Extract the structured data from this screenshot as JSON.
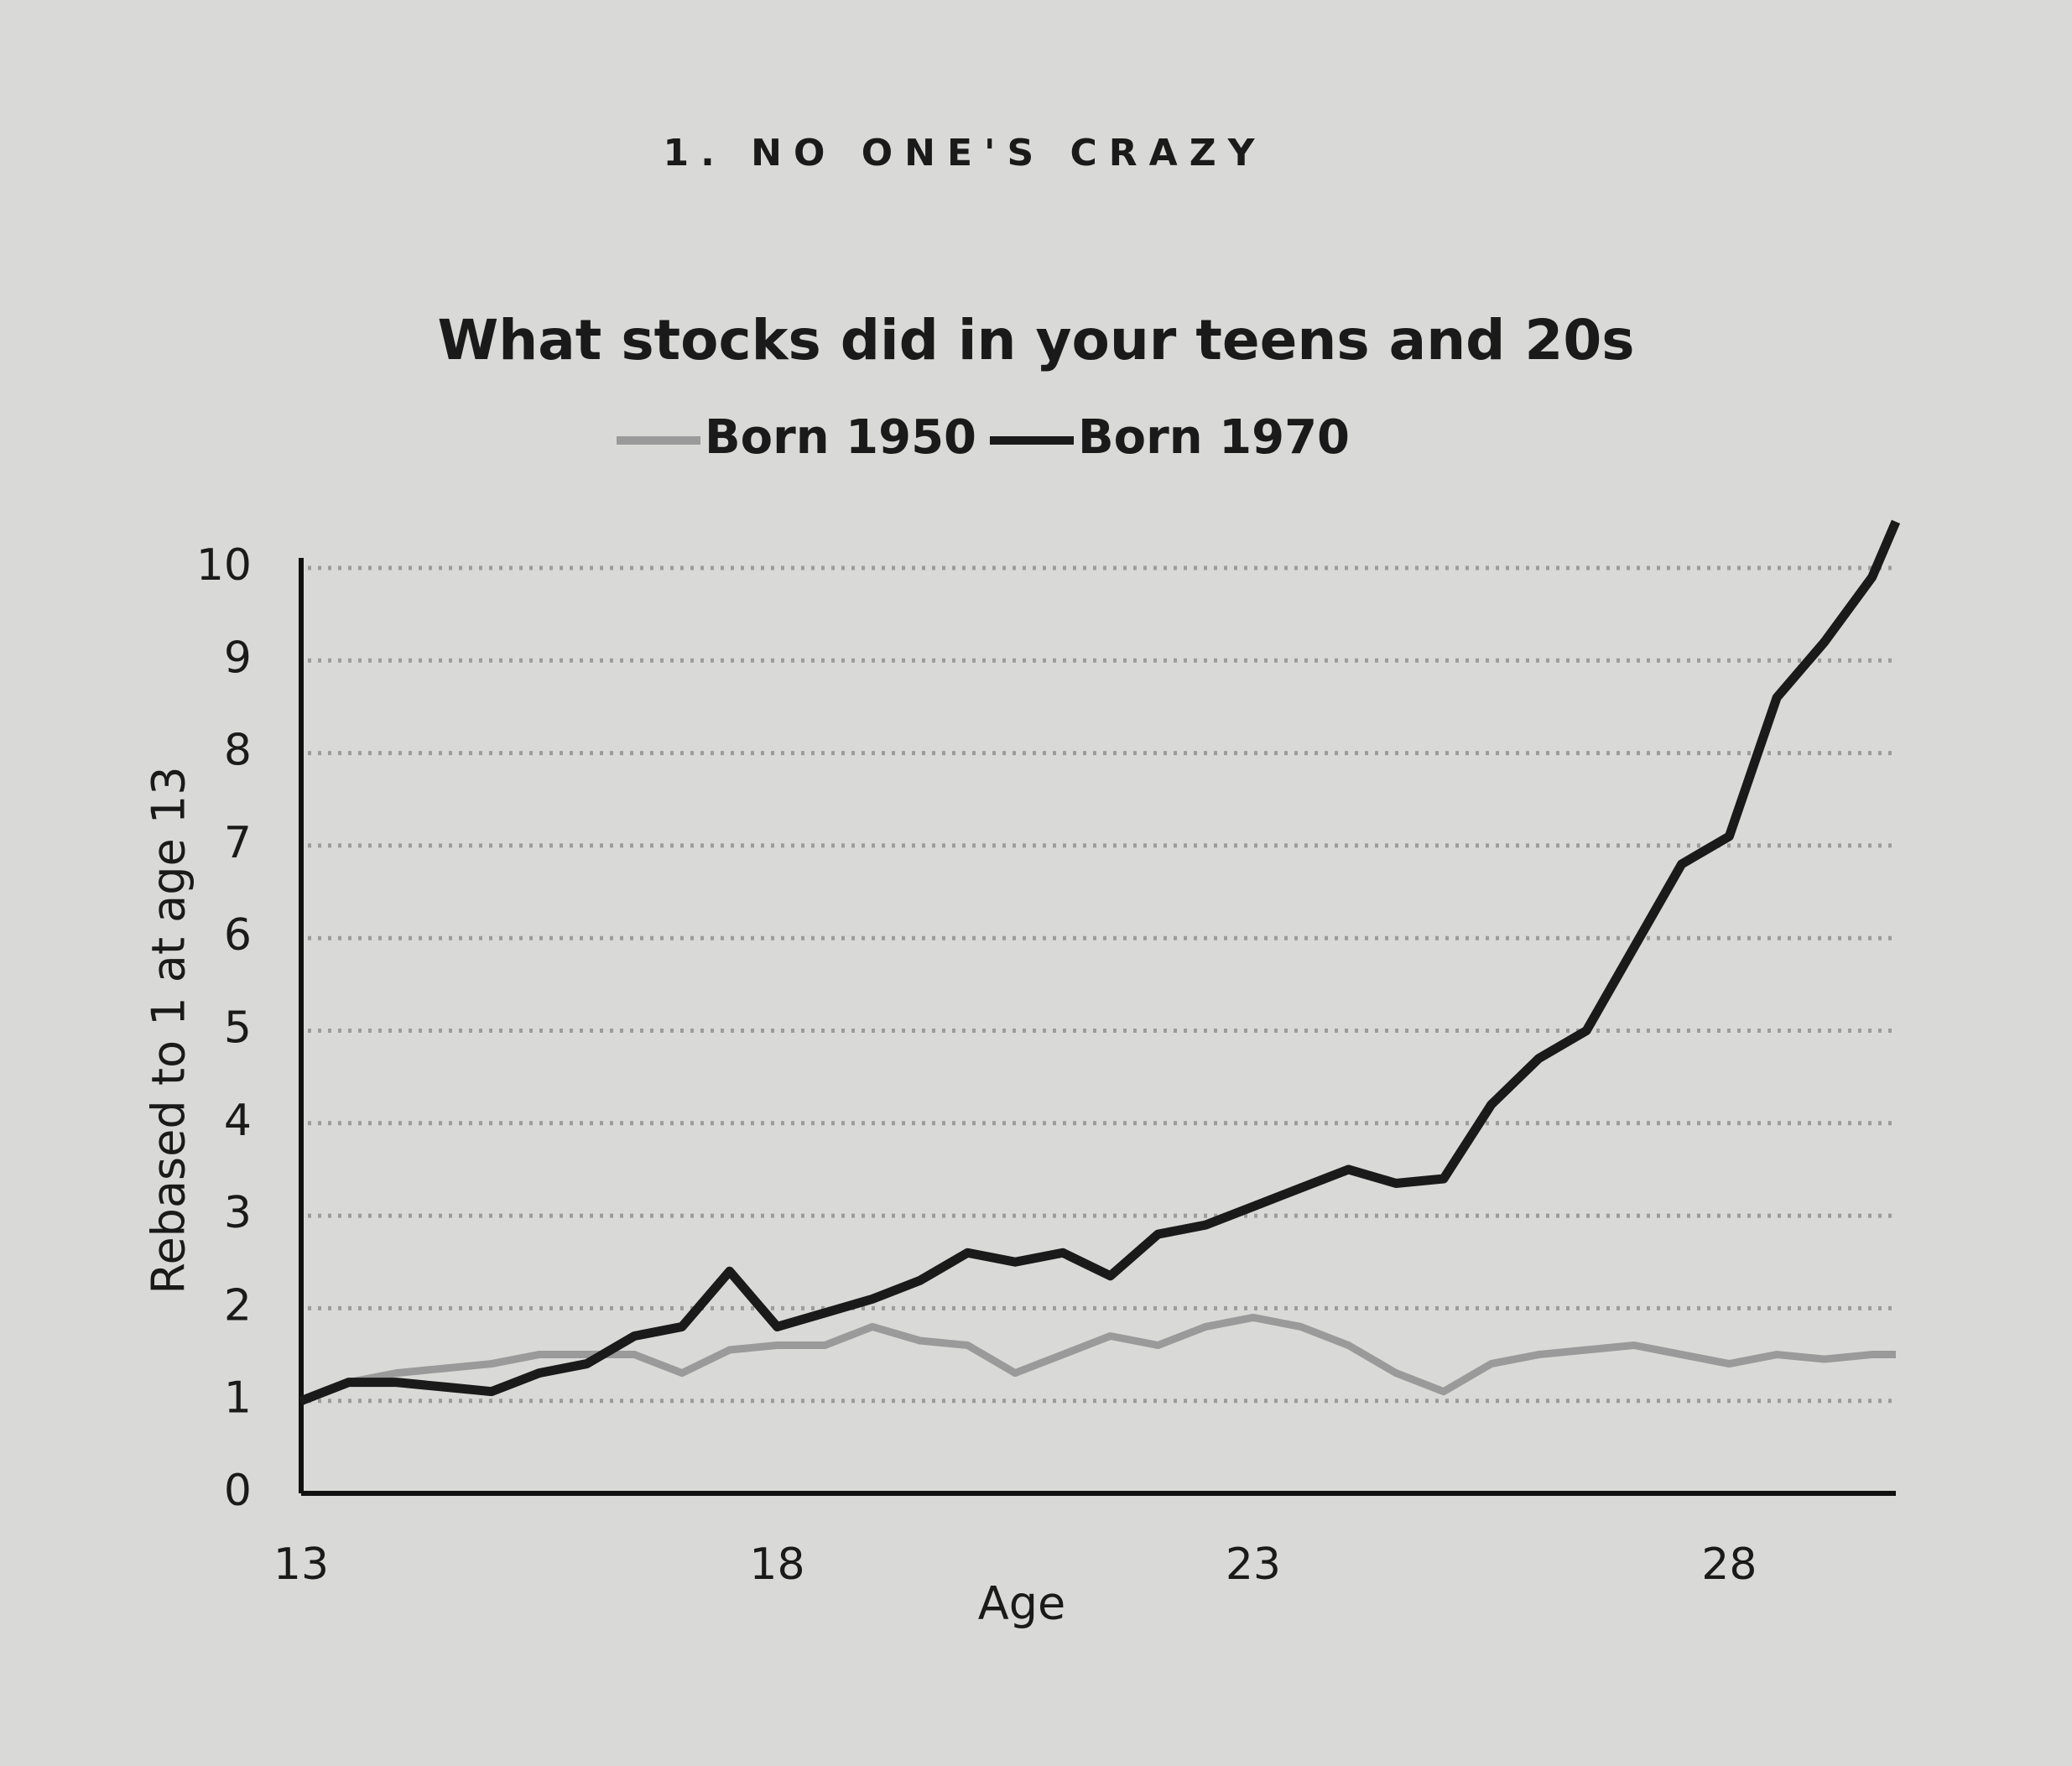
{
  "header": "1. NO ONE'S CRAZY",
  "chart_data": {
    "type": "line",
    "title": "What stocks did in your teens and 20s",
    "x_label": "Age",
    "y_label": "Rebased to 1 at age 13",
    "x": [
      13,
      13.5,
      14,
      14.5,
      15,
      15.5,
      16,
      16.5,
      17,
      17.5,
      18,
      18.5,
      19,
      19.5,
      20,
      20.5,
      21,
      21.5,
      22,
      22.5,
      23,
      23.5,
      24,
      24.5,
      25,
      25.5,
      26,
      26.5,
      27,
      27.5,
      28,
      28.5,
      29,
      29.5,
      29.75
    ],
    "series": [
      {
        "name": "Born 1950",
        "color": "#9a9a9a",
        "values": [
          1.0,
          1.2,
          1.3,
          1.35,
          1.4,
          1.5,
          1.5,
          1.5,
          1.3,
          1.55,
          1.6,
          1.6,
          1.8,
          1.65,
          1.6,
          1.3,
          1.5,
          1.7,
          1.6,
          1.8,
          1.9,
          1.8,
          1.6,
          1.3,
          1.1,
          1.4,
          1.5,
          1.55,
          1.6,
          1.5,
          1.4,
          1.5,
          1.45,
          1.5,
          1.5
        ]
      },
      {
        "name": "Born 1970",
        "color": "#1a1a1a",
        "values": [
          1.0,
          1.2,
          1.2,
          1.15,
          1.1,
          1.3,
          1.4,
          1.7,
          1.8,
          2.4,
          1.8,
          1.95,
          2.1,
          2.3,
          2.6,
          2.5,
          2.6,
          2.35,
          2.8,
          2.9,
          3.1,
          3.3,
          3.5,
          3.35,
          3.4,
          4.2,
          4.7,
          5.0,
          5.9,
          6.8,
          7.1,
          8.6,
          9.2,
          9.9,
          10.5
        ]
      }
    ],
    "xlim": [
      13,
      29.75
    ],
    "xticks": [
      13,
      18,
      23,
      28
    ],
    "ylim": [
      0,
      10
    ],
    "yticks": [
      0,
      1,
      2,
      3,
      4,
      5,
      6,
      7,
      8,
      9,
      10
    ],
    "grid": true
  }
}
